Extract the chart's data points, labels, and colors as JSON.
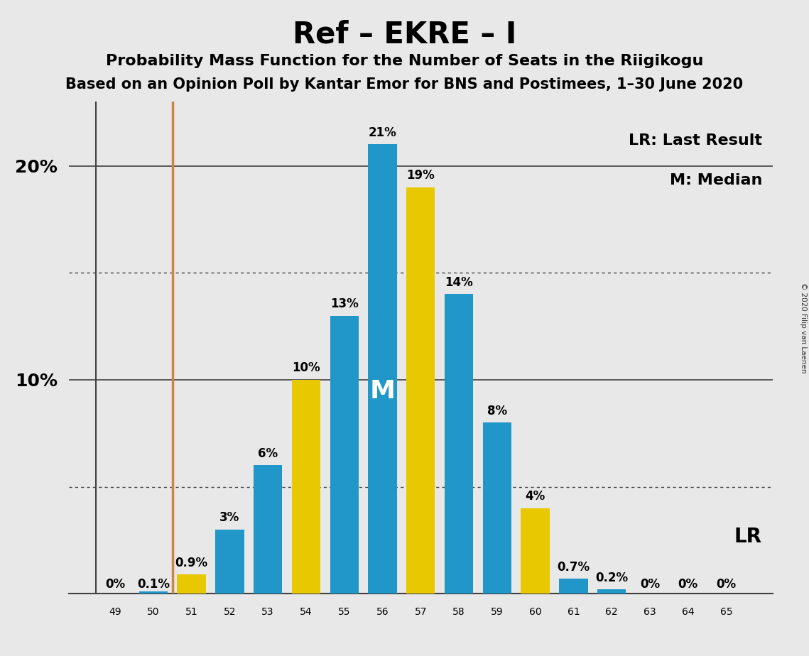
{
  "title": "Ref – EKRE – I",
  "subtitle1": "Probability Mass Function for the Number of Seats in the Riigikogu",
  "subtitle2": "Based on an Opinion Poll by Kantar Emor for BNS and Postimees, 1–30 June 2020",
  "copyright": "© 2020 Filip van Laenen",
  "seats": [
    49,
    50,
    51,
    52,
    53,
    54,
    55,
    56,
    57,
    58,
    59,
    60,
    61,
    62,
    63,
    64,
    65
  ],
  "pmf_values": [
    0.0,
    0.1,
    0.0,
    3.0,
    6.0,
    0.0,
    13.0,
    21.0,
    0.0,
    14.0,
    8.0,
    0.0,
    0.7,
    0.2,
    0.0,
    0.0,
    0.0
  ],
  "lr_values": [
    0.0,
    0.0,
    0.9,
    0.0,
    0.0,
    10.0,
    0.0,
    0.0,
    19.0,
    0.0,
    0.0,
    4.0,
    0.0,
    0.0,
    0.0,
    0.0,
    0.0
  ],
  "pmf_labels": [
    "0%",
    "0.1%",
    "",
    "3%",
    "6%",
    "",
    "13%",
    "21%",
    "",
    "14%",
    "8%",
    "",
    "0.7%",
    "0.2%",
    "0%",
    "0%",
    "0%"
  ],
  "lr_labels": [
    "",
    "",
    "0.9%",
    "",
    "",
    "10%",
    "",
    "",
    "19%",
    "",
    "",
    "4%",
    "",
    "",
    "",
    "",
    ""
  ],
  "bar_color_blue": "#2196C8",
  "bar_color_yellow": "#E8C800",
  "lr_line_color": "#CD853F",
  "lr_seat": 51,
  "median_seat": 56,
  "median_label": "M",
  "background_color": "#E8E8E8",
  "ylim": [
    0,
    23
  ],
  "ytick_positions": [
    10,
    20
  ],
  "ytick_labels": [
    "10%",
    "20%"
  ],
  "dotted_lines": [
    5,
    15
  ],
  "solid_lines": [
    10,
    20
  ],
  "legend_lr": "LR: Last Result",
  "legend_m": "M: Median",
  "lr_annotation": "LR",
  "title_fontsize": 30,
  "subtitle1_fontsize": 16,
  "subtitle2_fontsize": 15,
  "bar_label_fontsize": 12,
  "tick_fontsize": 18,
  "legend_fontsize": 16,
  "lr_annot_fontsize": 20
}
